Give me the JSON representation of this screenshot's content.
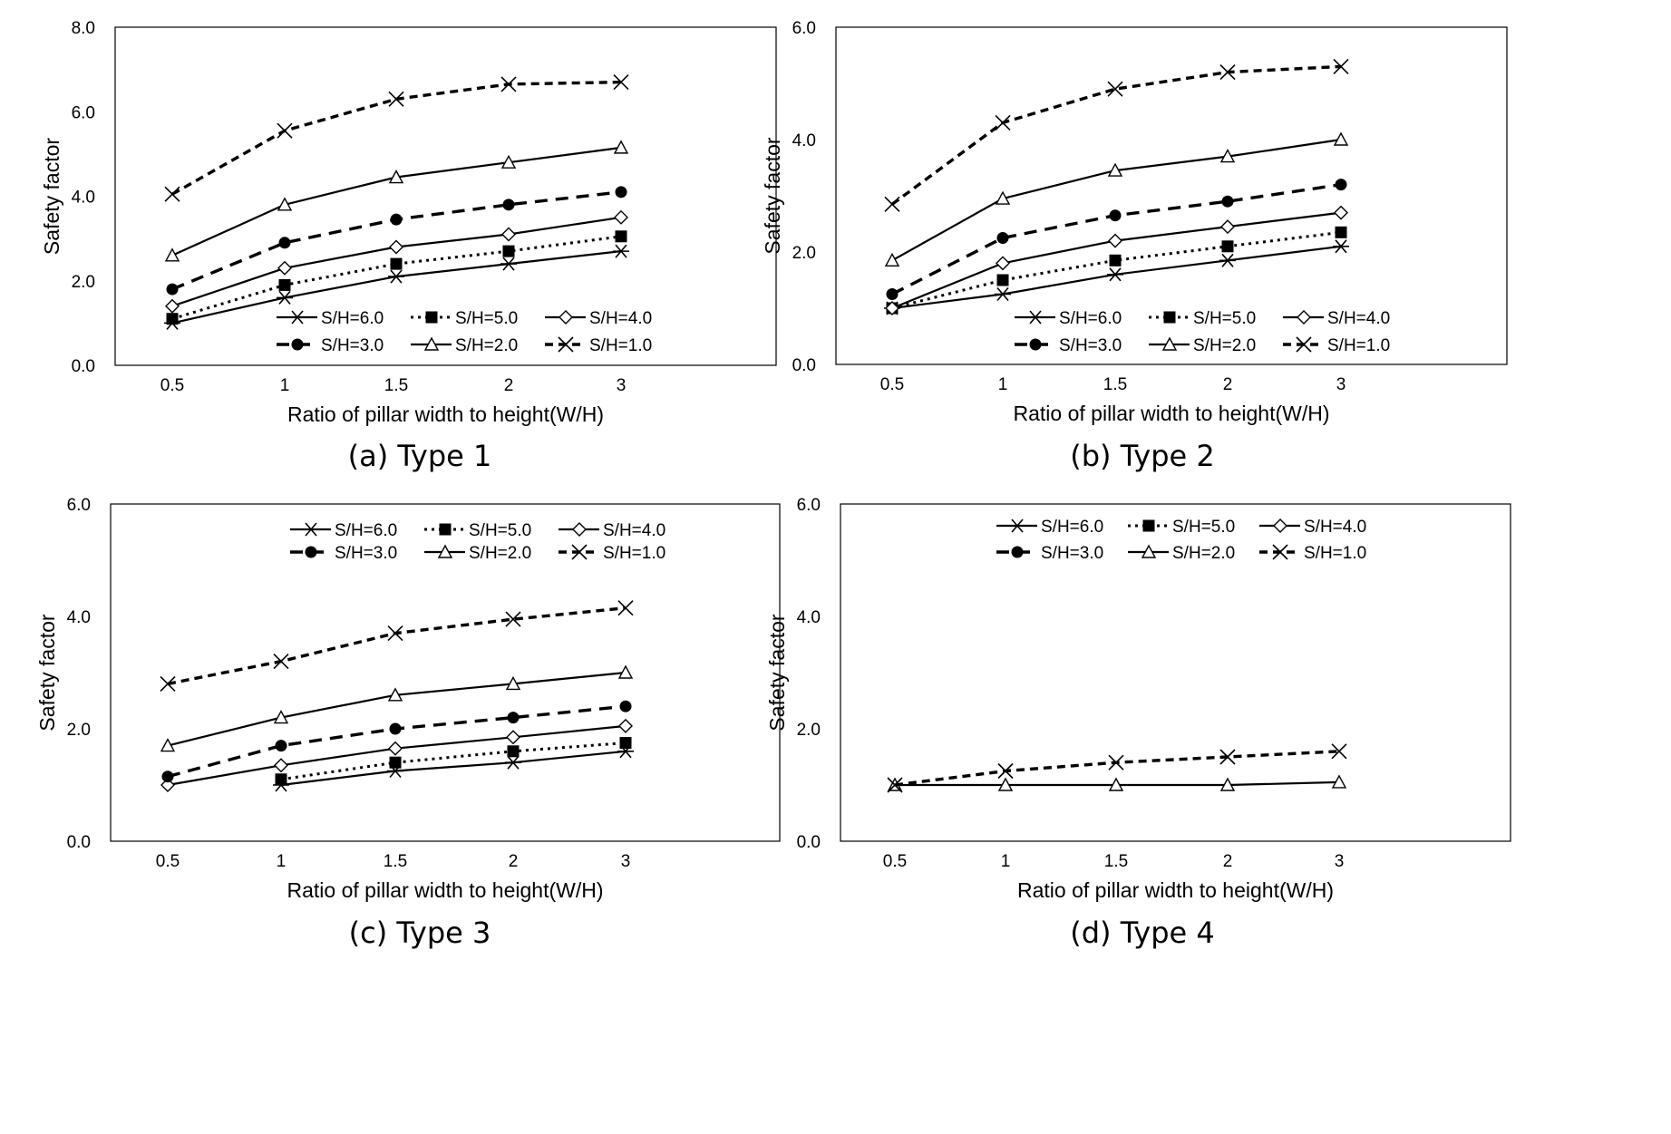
{
  "legend_labels": [
    "S/H=6.0",
    "S/H=5.0",
    "S/H=4.0",
    "S/H=3.0",
    "S/H=2.0",
    "S/H=1.0"
  ],
  "chart_data": [
    {
      "type": "line",
      "caption": "(a) Type 1",
      "xlabel": "Ratio of pillar width to height(W/H)",
      "ylabel": "Safety factor",
      "categories": [
        "0.5",
        "1",
        "1.5",
        "2",
        "3"
      ],
      "ylim": [
        0,
        8
      ],
      "yticks": [
        "0.0",
        "2.0",
        "4.0",
        "6.0",
        "8.0"
      ],
      "legend_position": "bottom-right",
      "series": [
        {
          "name": "S/H=6.0",
          "values": [
            1.0,
            1.6,
            2.1,
            2.4,
            2.7
          ]
        },
        {
          "name": "S/H=5.0",
          "values": [
            1.1,
            1.9,
            2.4,
            2.7,
            3.05
          ]
        },
        {
          "name": "S/H=4.0",
          "values": [
            1.4,
            2.3,
            2.8,
            3.1,
            3.5
          ]
        },
        {
          "name": "S/H=3.0",
          "values": [
            1.8,
            2.9,
            3.45,
            3.8,
            4.1
          ]
        },
        {
          "name": "S/H=2.0",
          "values": [
            2.6,
            3.8,
            4.45,
            4.8,
            5.15
          ]
        },
        {
          "name": "S/H=1.0",
          "values": [
            4.05,
            5.55,
            6.3,
            6.65,
            6.7
          ]
        }
      ]
    },
    {
      "type": "line",
      "caption": "(b) Type 2",
      "xlabel": "Ratio of pillar width to height(W/H)",
      "ylabel": "Safety factor",
      "categories": [
        "0.5",
        "1",
        "1.5",
        "2",
        "3"
      ],
      "ylim": [
        0,
        6
      ],
      "yticks": [
        "0.0",
        "2.0",
        "4.0",
        "6.0"
      ],
      "legend_position": "bottom-right",
      "series": [
        {
          "name": "S/H=6.0",
          "values": [
            1.0,
            1.25,
            1.6,
            1.85,
            2.1
          ]
        },
        {
          "name": "S/H=5.0",
          "values": [
            1.0,
            1.5,
            1.85,
            2.1,
            2.35
          ]
        },
        {
          "name": "S/H=4.0",
          "values": [
            1.0,
            1.8,
            2.2,
            2.45,
            2.7
          ]
        },
        {
          "name": "S/H=3.0",
          "values": [
            1.25,
            2.25,
            2.65,
            2.9,
            3.2
          ]
        },
        {
          "name": "S/H=2.0",
          "values": [
            1.85,
            2.95,
            3.45,
            3.7,
            4.0
          ]
        },
        {
          "name": "S/H=1.0",
          "values": [
            2.85,
            4.3,
            4.9,
            5.2,
            5.3
          ]
        }
      ]
    },
    {
      "type": "line",
      "caption": "(c) Type 3",
      "xlabel": "Ratio of pillar width to height(W/H)",
      "ylabel": "Safety factor",
      "categories": [
        "0.5",
        "1",
        "1.5",
        "2",
        "3"
      ],
      "ylim": [
        0,
        6
      ],
      "yticks": [
        "0.0",
        "2.0",
        "4.0",
        "6.0"
      ],
      "legend_position": "top-right",
      "series": [
        {
          "name": "S/H=6.0",
          "values": [
            null,
            1.0,
            1.25,
            1.4,
            1.6
          ]
        },
        {
          "name": "S/H=5.0",
          "values": [
            null,
            1.1,
            1.4,
            1.6,
            1.75
          ]
        },
        {
          "name": "S/H=4.0",
          "values": [
            1.0,
            1.35,
            1.65,
            1.85,
            2.05
          ]
        },
        {
          "name": "S/H=3.0",
          "values": [
            1.15,
            1.7,
            2.0,
            2.2,
            2.4
          ]
        },
        {
          "name": "S/H=2.0",
          "values": [
            1.7,
            2.2,
            2.6,
            2.8,
            3.0
          ]
        },
        {
          "name": "S/H=1.0",
          "values": [
            2.8,
            3.2,
            3.7,
            3.95,
            4.15
          ]
        }
      ]
    },
    {
      "type": "line",
      "caption": "(d) Type 4",
      "xlabel": "Ratio of pillar width to height(W/H)",
      "ylabel": "Safety factor",
      "categories": [
        "0.5",
        "1",
        "1.5",
        "2",
        "3"
      ],
      "ylim": [
        0,
        6
      ],
      "yticks": [
        "0.0",
        "2.0",
        "4.0",
        "6.0"
      ],
      "legend_position": "top-right",
      "series": [
        {
          "name": "S/H=6.0",
          "values": [
            null,
            null,
            null,
            null,
            null
          ]
        },
        {
          "name": "S/H=5.0",
          "values": [
            null,
            null,
            null,
            null,
            null
          ]
        },
        {
          "name": "S/H=4.0",
          "values": [
            null,
            null,
            null,
            null,
            null
          ]
        },
        {
          "name": "S/H=3.0",
          "values": [
            null,
            null,
            null,
            null,
            null
          ]
        },
        {
          "name": "S/H=2.0",
          "values": [
            1.0,
            1.0,
            1.0,
            1.0,
            1.05
          ]
        },
        {
          "name": "S/H=1.0",
          "values": [
            1.0,
            1.25,
            1.4,
            1.5,
            1.6
          ]
        }
      ]
    }
  ]
}
